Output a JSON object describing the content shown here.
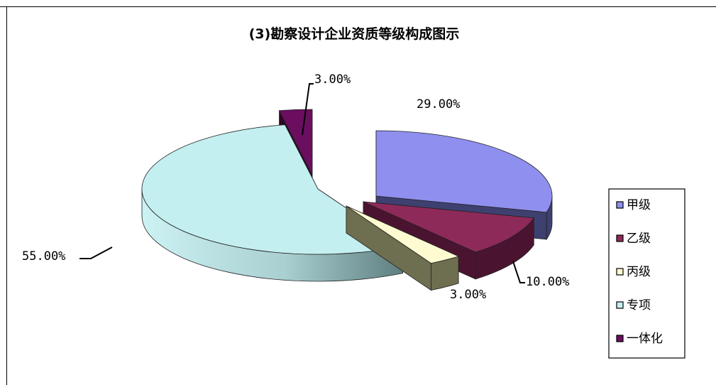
{
  "chart_data": {
    "type": "pie",
    "title": "(3)勘察设计企业资质等级构成图示",
    "categories": [
      "甲级",
      "乙级",
      "丙级",
      "专项",
      "一体化"
    ],
    "values": [
      29.0,
      10.0,
      3.0,
      55.0,
      3.0
    ],
    "data_labels": [
      "29.00%",
      "10.00%",
      "3.00%",
      "55.00%",
      "3.00%"
    ],
    "colors": [
      "#8f8fef",
      "#8e2a5a",
      "#fffbd0",
      "#c4eff0",
      "#6b0e60"
    ],
    "legend": {
      "position": "right",
      "items": [
        "甲级",
        "乙级",
        "丙级",
        "专项",
        "一体化"
      ]
    },
    "style": "3d-exploded"
  }
}
